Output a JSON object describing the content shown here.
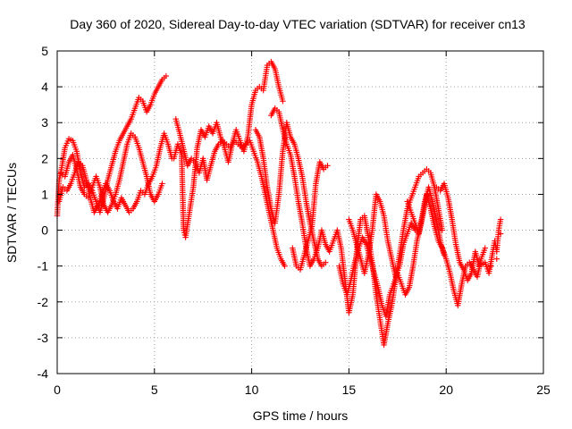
{
  "chart_data": {
    "type": "scatter",
    "title": "Day 360 of 2020, Sidereal Day-to-day VTEC variation (SDTVAR) for receiver cn13",
    "xlabel": "GPS time / hours",
    "ylabel": "SDTVAR / TECUs",
    "xlim": [
      0,
      25
    ],
    "ylim": [
      -4,
      5
    ],
    "x_ticks": [
      0,
      5,
      10,
      15,
      20,
      25
    ],
    "y_ticks": [
      -4,
      -3,
      -2,
      -1,
      0,
      1,
      2,
      3,
      4,
      5
    ],
    "grid": true,
    "marker": "+",
    "series": [
      {
        "name": "SDTVAR",
        "color": "#ff0000",
        "points": [
          [
            0.0,
            0.4
          ],
          [
            0.1,
            1.4
          ],
          [
            0.25,
            1.8
          ],
          [
            0.4,
            2.3
          ],
          [
            0.6,
            2.55
          ],
          [
            0.8,
            2.5
          ],
          [
            1.0,
            2.2
          ],
          [
            1.2,
            1.6
          ],
          [
            1.4,
            1.2
          ],
          [
            1.6,
            1.3
          ],
          [
            1.8,
            1.1
          ],
          [
            2.0,
            0.8
          ],
          [
            2.2,
            0.5
          ],
          [
            2.4,
            0.9
          ],
          [
            2.6,
            1.4
          ],
          [
            2.8,
            1.8
          ],
          [
            3.0,
            2.2
          ],
          [
            3.2,
            2.5
          ],
          [
            3.4,
            2.7
          ],
          [
            3.6,
            2.9
          ],
          [
            3.8,
            3.1
          ],
          [
            4.0,
            3.4
          ],
          [
            4.2,
            3.7
          ],
          [
            4.4,
            3.6
          ],
          [
            4.6,
            3.3
          ],
          [
            4.8,
            3.5
          ],
          [
            5.0,
            3.8
          ],
          [
            5.2,
            4.0
          ],
          [
            5.4,
            4.2
          ],
          [
            5.6,
            4.3
          ],
          [
            0.1,
            0.8
          ],
          [
            0.3,
            1.2
          ],
          [
            0.5,
            1.1
          ],
          [
            0.7,
            1.3
          ],
          [
            0.9,
            1.6
          ],
          [
            1.1,
            1.9
          ],
          [
            1.3,
            1.8
          ],
          [
            1.5,
            1.4
          ],
          [
            1.7,
            0.9
          ],
          [
            1.9,
            0.5
          ],
          [
            2.1,
            0.7
          ],
          [
            2.3,
            1.0
          ],
          [
            2.5,
            1.3
          ],
          [
            2.7,
            1.1
          ],
          [
            2.9,
            0.8
          ],
          [
            3.1,
            0.6
          ],
          [
            3.3,
            0.9
          ],
          [
            3.5,
            0.7
          ],
          [
            3.7,
            0.5
          ],
          [
            3.9,
            0.6
          ],
          [
            4.1,
            0.8
          ],
          [
            4.3,
            1.1
          ],
          [
            4.5,
            1.0
          ],
          [
            4.7,
            1.3
          ],
          [
            4.9,
            1.5
          ],
          [
            5.1,
            1.8
          ],
          [
            5.3,
            2.3
          ],
          [
            5.5,
            2.7
          ],
          [
            5.7,
            2.4
          ],
          [
            5.9,
            2.0
          ],
          [
            0.2,
            1.6
          ],
          [
            0.4,
            1.5
          ],
          [
            0.6,
            1.9
          ],
          [
            0.8,
            2.1
          ],
          [
            1.0,
            1.7
          ],
          [
            1.2,
            1.2
          ],
          [
            1.4,
            1.0
          ],
          [
            1.6,
            0.9
          ],
          [
            1.8,
            1.2
          ],
          [
            2.0,
            1.5
          ],
          [
            2.2,
            1.2
          ],
          [
            2.4,
            0.7
          ],
          [
            2.6,
            0.5
          ],
          [
            2.8,
            0.7
          ],
          [
            3.0,
            1.0
          ],
          [
            3.2,
            1.4
          ],
          [
            3.4,
            1.9
          ],
          [
            3.6,
            2.4
          ],
          [
            3.8,
            2.7
          ],
          [
            4.0,
            2.6
          ],
          [
            4.2,
            2.3
          ],
          [
            4.4,
            1.9
          ],
          [
            4.6,
            1.5
          ],
          [
            4.8,
            1.0
          ],
          [
            5.0,
            0.8
          ],
          [
            5.2,
            1.0
          ],
          [
            5.4,
            1.3
          ],
          [
            6.0,
            2.0
          ],
          [
            6.2,
            2.4
          ],
          [
            6.4,
            2.1
          ],
          [
            6.5,
            0.0
          ],
          [
            6.6,
            -0.2
          ],
          [
            6.8,
            0.5
          ],
          [
            7.0,
            1.2
          ],
          [
            7.2,
            2.3
          ],
          [
            7.4,
            2.8
          ],
          [
            7.6,
            2.6
          ],
          [
            7.8,
            2.9
          ],
          [
            8.0,
            2.7
          ],
          [
            8.2,
            3.0
          ],
          [
            8.4,
            2.6
          ],
          [
            8.6,
            2.3
          ],
          [
            8.8,
            1.9
          ],
          [
            9.0,
            2.4
          ],
          [
            9.2,
            2.8
          ],
          [
            9.4,
            2.5
          ],
          [
            9.6,
            2.2
          ],
          [
            9.8,
            2.6
          ],
          [
            10.0,
            3.5
          ],
          [
            10.2,
            3.9
          ],
          [
            10.4,
            4.0
          ],
          [
            10.6,
            3.9
          ],
          [
            10.8,
            4.6
          ],
          [
            11.0,
            4.7
          ],
          [
            11.2,
            4.5
          ],
          [
            11.4,
            4.0
          ],
          [
            11.6,
            3.6
          ],
          [
            6.1,
            3.1
          ],
          [
            6.3,
            2.7
          ],
          [
            6.7,
            1.8
          ],
          [
            6.9,
            2.0
          ],
          [
            7.1,
            1.9
          ],
          [
            7.3,
            1.6
          ],
          [
            7.5,
            2.0
          ],
          [
            7.7,
            1.4
          ],
          [
            7.9,
            1.8
          ],
          [
            8.1,
            2.2
          ],
          [
            8.3,
            2.4
          ],
          [
            8.5,
            2.5
          ],
          [
            8.7,
            2.4
          ],
          [
            8.9,
            2.3
          ],
          [
            9.1,
            2.5
          ],
          [
            9.3,
            2.4
          ],
          [
            9.5,
            2.3
          ],
          [
            9.7,
            2.4
          ],
          [
            9.9,
            2.5
          ],
          [
            10.1,
            2.2
          ],
          [
            10.3,
            1.9
          ],
          [
            10.5,
            1.5
          ],
          [
            10.7,
            1.0
          ],
          [
            10.9,
            0.5
          ],
          [
            11.1,
            0.0
          ],
          [
            11.3,
            -0.5
          ],
          [
            11.5,
            -0.8
          ],
          [
            11.7,
            -1.0
          ],
          [
            10.2,
            2.8
          ],
          [
            10.4,
            2.6
          ],
          [
            10.6,
            2.0
          ],
          [
            10.8,
            1.2
          ],
          [
            11.0,
            0.6
          ],
          [
            11.2,
            0.2
          ],
          [
            11.4,
            1.0
          ],
          [
            11.6,
            2.2
          ],
          [
            11.8,
            3.0
          ],
          [
            12.0,
            2.6
          ],
          [
            12.2,
            2.4
          ],
          [
            12.4,
            2.0
          ],
          [
            12.6,
            1.5
          ],
          [
            12.8,
            0.8
          ],
          [
            13.0,
            0.2
          ],
          [
            13.2,
            -0.3
          ],
          [
            13.4,
            -0.8
          ],
          [
            13.6,
            -1.0
          ],
          [
            13.8,
            -0.9
          ],
          [
            12.1,
            -0.5
          ],
          [
            12.3,
            -1.0
          ],
          [
            12.5,
            -1.1
          ],
          [
            12.7,
            -0.7
          ],
          [
            12.9,
            -0.3
          ],
          [
            13.1,
            0.1
          ],
          [
            13.3,
            1.3
          ],
          [
            13.5,
            1.9
          ],
          [
            13.7,
            1.7
          ],
          [
            13.9,
            1.8
          ],
          [
            11.0,
            3.2
          ],
          [
            11.2,
            3.4
          ],
          [
            11.4,
            3.3
          ],
          [
            11.6,
            2.8
          ],
          [
            11.8,
            2.4
          ],
          [
            12.0,
            2.1
          ],
          [
            12.2,
            1.5
          ],
          [
            12.4,
            0.8
          ],
          [
            12.6,
            0.2
          ],
          [
            12.8,
            -0.5
          ],
          [
            13.0,
            -1.0
          ],
          [
            13.2,
            -0.8
          ],
          [
            13.4,
            -0.5
          ],
          [
            13.6,
            0.0
          ],
          [
            13.8,
            -0.4
          ],
          [
            14.0,
            -0.6
          ],
          [
            14.2,
            -0.3
          ],
          [
            14.4,
            0.0
          ],
          [
            14.6,
            -0.5
          ],
          [
            14.8,
            -1.4
          ],
          [
            15.0,
            -2.3
          ],
          [
            15.2,
            -1.8
          ],
          [
            15.4,
            -0.6
          ],
          [
            15.6,
            0.3
          ],
          [
            15.8,
            0.4
          ],
          [
            16.0,
            -0.2
          ],
          [
            16.2,
            -0.9
          ],
          [
            16.4,
            -1.8
          ],
          [
            16.6,
            -2.5
          ],
          [
            16.8,
            -3.2
          ],
          [
            17.0,
            -2.6
          ],
          [
            17.2,
            -2.1
          ],
          [
            17.4,
            -1.4
          ],
          [
            17.6,
            -0.7
          ],
          [
            17.8,
            0.0
          ],
          [
            18.0,
            0.6
          ],
          [
            18.2,
            0.9
          ],
          [
            18.4,
            1.2
          ],
          [
            18.6,
            1.5
          ],
          [
            18.8,
            1.6
          ],
          [
            19.0,
            1.7
          ],
          [
            19.2,
            1.6
          ],
          [
            19.4,
            1.2
          ],
          [
            19.6,
            0.6
          ],
          [
            19.8,
            0.0
          ],
          [
            14.5,
            -1.0
          ],
          [
            14.7,
            -1.5
          ],
          [
            14.9,
            -1.8
          ],
          [
            15.1,
            -1.4
          ],
          [
            15.3,
            -0.9
          ],
          [
            15.5,
            -0.5
          ],
          [
            15.7,
            -0.2
          ],
          [
            15.9,
            -0.4
          ],
          [
            16.1,
            -0.8
          ],
          [
            16.3,
            -1.2
          ],
          [
            16.5,
            -1.6
          ],
          [
            16.7,
            -2.1
          ],
          [
            16.9,
            -2.4
          ],
          [
            17.1,
            -1.8
          ],
          [
            17.3,
            -1.5
          ],
          [
            17.5,
            -1.2
          ],
          [
            17.7,
            -1.5
          ],
          [
            17.9,
            -1.8
          ],
          [
            18.1,
            -1.6
          ],
          [
            18.3,
            -1.0
          ],
          [
            18.5,
            -0.3
          ],
          [
            18.7,
            0.2
          ],
          [
            18.9,
            0.8
          ],
          [
            19.1,
            1.2
          ],
          [
            19.3,
            0.8
          ],
          [
            19.5,
            0.3
          ],
          [
            19.7,
            -0.3
          ],
          [
            19.9,
            -0.7
          ],
          [
            15.0,
            0.3
          ],
          [
            15.2,
            0.0
          ],
          [
            15.4,
            -0.4
          ],
          [
            15.6,
            -0.8
          ],
          [
            15.8,
            -1.2
          ],
          [
            16.0,
            -0.7
          ],
          [
            16.2,
            0.0
          ],
          [
            16.4,
            1.0
          ],
          [
            16.6,
            0.8
          ],
          [
            16.8,
            0.4
          ],
          [
            17.0,
            -0.3
          ],
          [
            17.2,
            -0.8
          ],
          [
            17.4,
            -1.3
          ],
          [
            17.6,
            -1.0
          ],
          [
            17.8,
            -0.4
          ],
          [
            18.0,
            -0.1
          ],
          [
            18.2,
            0.2
          ],
          [
            18.4,
            0.0
          ],
          [
            18.0,
            0.8
          ],
          [
            18.2,
            0.5
          ],
          [
            18.4,
            0.2
          ],
          [
            18.6,
            -0.1
          ],
          [
            18.8,
            0.4
          ],
          [
            19.0,
            1.0
          ],
          [
            19.2,
            0.6
          ],
          [
            19.4,
            0.1
          ],
          [
            19.6,
            -0.3
          ],
          [
            19.8,
            -0.5
          ],
          [
            20.0,
            -0.8
          ],
          [
            20.2,
            -1.2
          ],
          [
            20.4,
            -1.7
          ],
          [
            20.6,
            -2.1
          ],
          [
            20.8,
            -1.5
          ],
          [
            21.0,
            -1.0
          ],
          [
            21.2,
            -0.9
          ],
          [
            21.4,
            -1.1
          ],
          [
            21.6,
            -1.3
          ],
          [
            21.8,
            -0.8
          ],
          [
            22.0,
            -0.5
          ],
          [
            19.5,
            1.2
          ],
          [
            19.7,
            1.1
          ],
          [
            19.9,
            1.3
          ],
          [
            20.1,
            0.9
          ],
          [
            20.3,
            0.3
          ],
          [
            20.5,
            -0.4
          ],
          [
            20.7,
            -0.9
          ],
          [
            20.9,
            -1.1
          ],
          [
            21.1,
            -1.4
          ],
          [
            21.3,
            -1.2
          ],
          [
            21.5,
            -0.6
          ],
          [
            21.7,
            -1.0
          ],
          [
            22.0,
            -0.9
          ],
          [
            22.2,
            -1.2
          ],
          [
            22.4,
            -0.6
          ],
          [
            22.5,
            -0.3
          ],
          [
            22.6,
            -0.6
          ],
          [
            22.7,
            0.0
          ],
          [
            22.8,
            0.3
          ],
          [
            22.8,
            -0.1
          ],
          [
            22.6,
            -0.8
          ],
          [
            22.3,
            -1.0
          ]
        ]
      }
    ]
  }
}
